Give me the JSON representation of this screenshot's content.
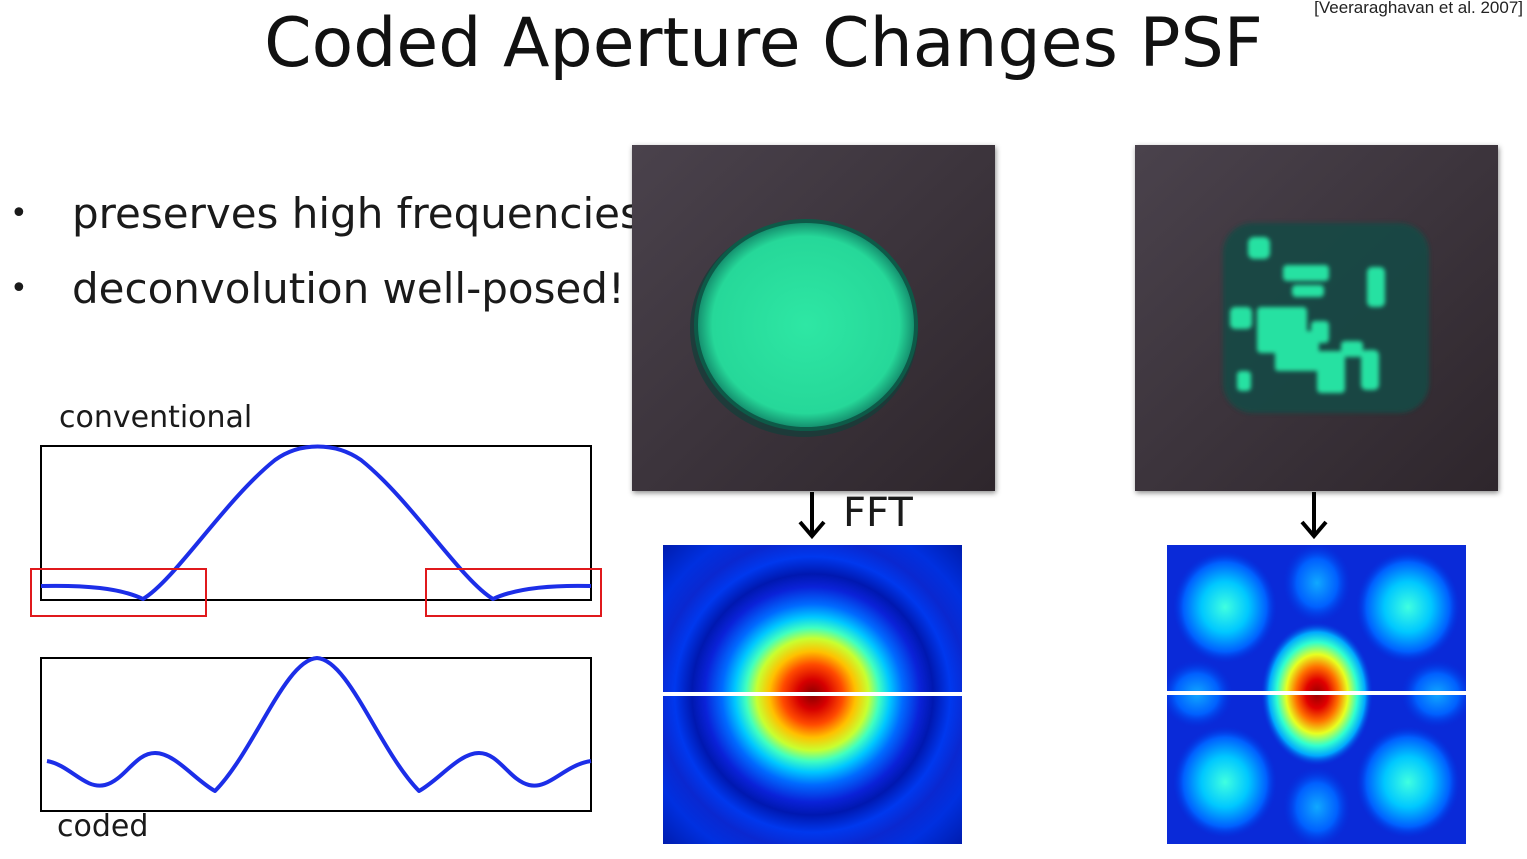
{
  "slide": {
    "title": "Coded Aperture Changes PSF",
    "citation": "[Veeraraghavan et al. 2007]"
  },
  "bullets": [
    {
      "bullet_glyph": "•",
      "text": "preserves high frequencies"
    },
    {
      "bullet_glyph": "•",
      "text": "deconvolution well-posed!"
    }
  ],
  "plots": {
    "conventional_label": "conventional",
    "coded_label": "coded",
    "curve_color": "#1c2ee8",
    "highlight_color": "#e0191c"
  },
  "figures": {
    "fft_label": "FFT",
    "photo_bg_color": "#3a3138",
    "psf_color": "#1ee0a0",
    "spectrum_line_color": "#ffffff"
  }
}
